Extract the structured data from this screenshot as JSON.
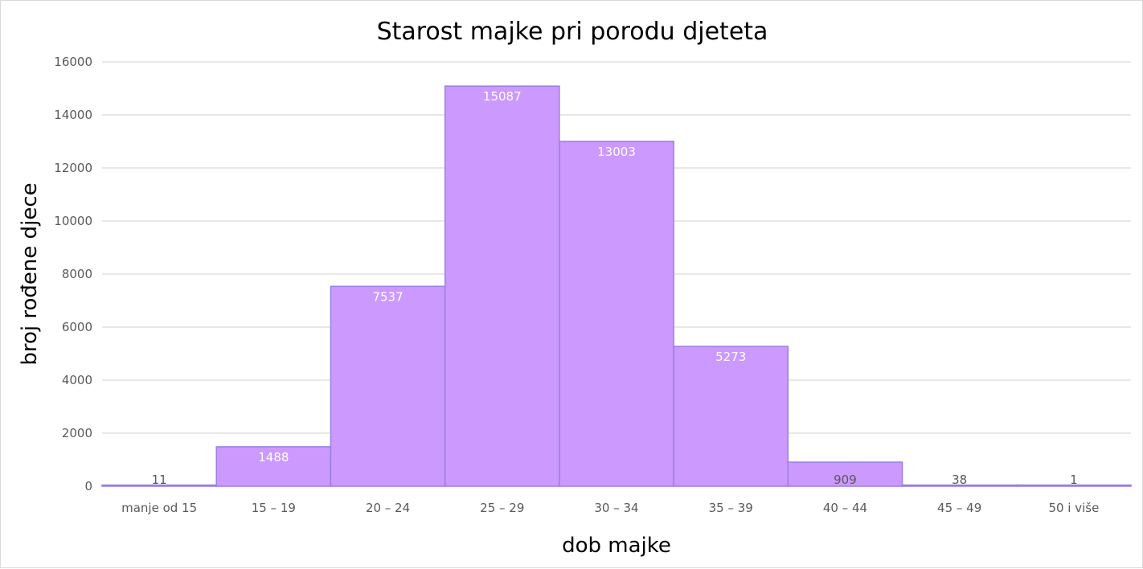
{
  "chart_data": {
    "type": "bar",
    "title": "Starost majke pri porodu djeteta",
    "xlabel": "dob majke",
    "ylabel": "broj rođene djece",
    "categories": [
      "manje od 15",
      "15 – 19",
      "20 – 24",
      "25 – 29",
      "30 – 34",
      "35 – 39",
      "40 – 44",
      "45 – 49",
      "50 i više"
    ],
    "values": [
      11,
      1488,
      7537,
      15087,
      13003,
      5273,
      909,
      38,
      1
    ],
    "value_labels": [
      "11",
      "1488",
      "7537",
      "15087",
      "13003",
      "5273",
      "909",
      "38",
      "1"
    ],
    "ylim": [
      0,
      16000
    ],
    "yticks": [
      "0",
      "2000",
      "4000",
      "6000",
      "8000",
      "10000",
      "12000",
      "14000",
      "16000"
    ],
    "grid": true,
    "legend": "none",
    "colors": {
      "bar_fill": "#cc99ff",
      "bar_stroke": "#9a7fe6",
      "label_inside": "#ffffff",
      "label_outside": "#595959",
      "grid": "#d9d9d9"
    }
  }
}
